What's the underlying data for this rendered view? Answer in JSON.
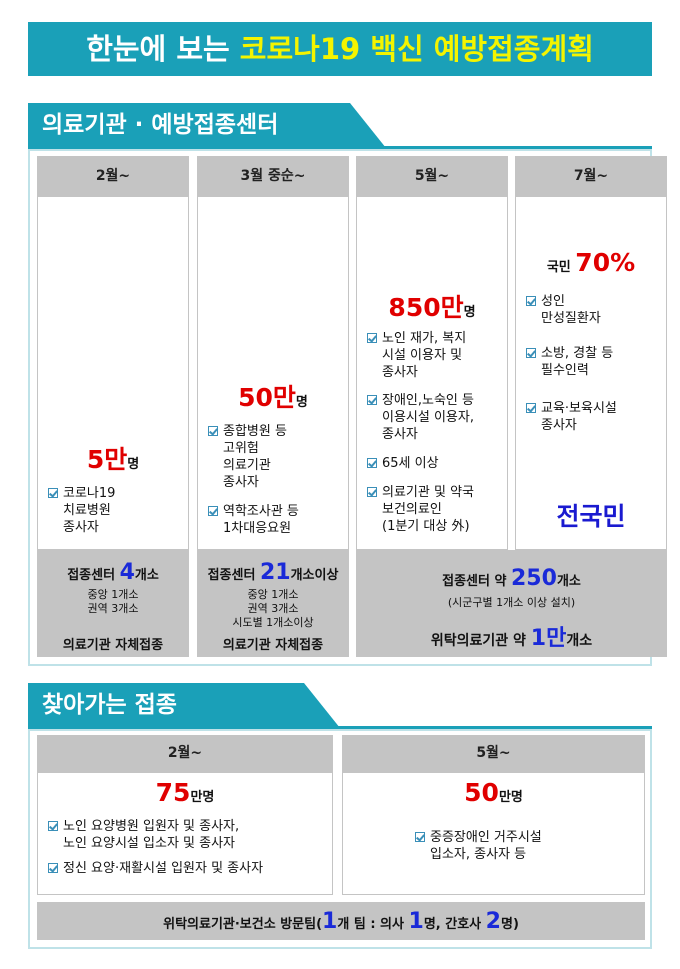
{
  "title": [
    "한눈에 보는 ",
    "코로나19 백신 예방접종계획"
  ],
  "institution": {
    "heading": "의료기관 · 예방접종센터",
    "columns": [
      {
        "period": "2월~",
        "count": [
          "5만",
          "명"
        ],
        "items": [
          "코로나19\n치료병원\n종사자"
        ]
      },
      {
        "period": "3월 중순~",
        "count": [
          "50만",
          "명"
        ],
        "items": [
          "종합병원 등\n고위험\n의료기관\n종사자",
          "역학조사관 등\n1차대응요원"
        ]
      },
      {
        "period": "5월~",
        "count": [
          "850만",
          "명"
        ],
        "items": [
          "노인 재가, 복지\n시설 이용자 및\n종사자",
          "장애인,노숙인 등\n이용시설 이용자,\n종사자",
          "65세 이상",
          "의료기관 및 약국\n보건의료인\n(1분기 대상 外)"
        ]
      },
      {
        "period": "7월~",
        "count": [
          "국민 ",
          "70%"
        ],
        "items": [
          "성인\n만성질환자",
          "소방, 경찰 등\n필수인력",
          "교육·보육시설\n종사자"
        ],
        "note": "전국민"
      }
    ],
    "centers": [
      {
        "count": [
          "접종센터 ",
          "4",
          "개소"
        ],
        "details": [
          "중앙 1개소",
          "권역 3개소"
        ],
        "note": [
          "의료기관 자체접종"
        ]
      },
      {
        "count": [
          "접종센터 ",
          "21",
          "개소이상"
        ],
        "details": [
          "중앙 1개소",
          "권역 3개소",
          "시도별 1개소이상"
        ],
        "note": [
          "의료기관 자체접종"
        ]
      },
      {
        "count": [
          "접종센터 약 ",
          "250",
          "개소"
        ],
        "details": [
          "(시군구별 1개소 이상 설치)"
        ],
        "note": [
          "위탁의료기관 약 ",
          "1만",
          "개소"
        ]
      }
    ]
  },
  "visiting": {
    "heading": "찾아가는 접종",
    "columns": [
      {
        "period": "2월~",
        "count": [
          "75",
          "만명"
        ],
        "items": [
          "노인 요양병원 입원자 및 종사자,\n노인 요양시설 입소자 및 종사자",
          "정신 요양·재활시설 입원자 및 종사자"
        ]
      },
      {
        "period": "5월~",
        "count": [
          "50",
          "만명"
        ],
        "items": [
          "중증장애인 거주시설\n입소자, 종사자 등"
        ]
      }
    ],
    "team": [
      "위탁의료기관·보건소 방문팀(",
      "1",
      "개 팀 : 의사 ",
      "1",
      "명, 간호사 ",
      "2",
      "명)"
    ]
  }
}
